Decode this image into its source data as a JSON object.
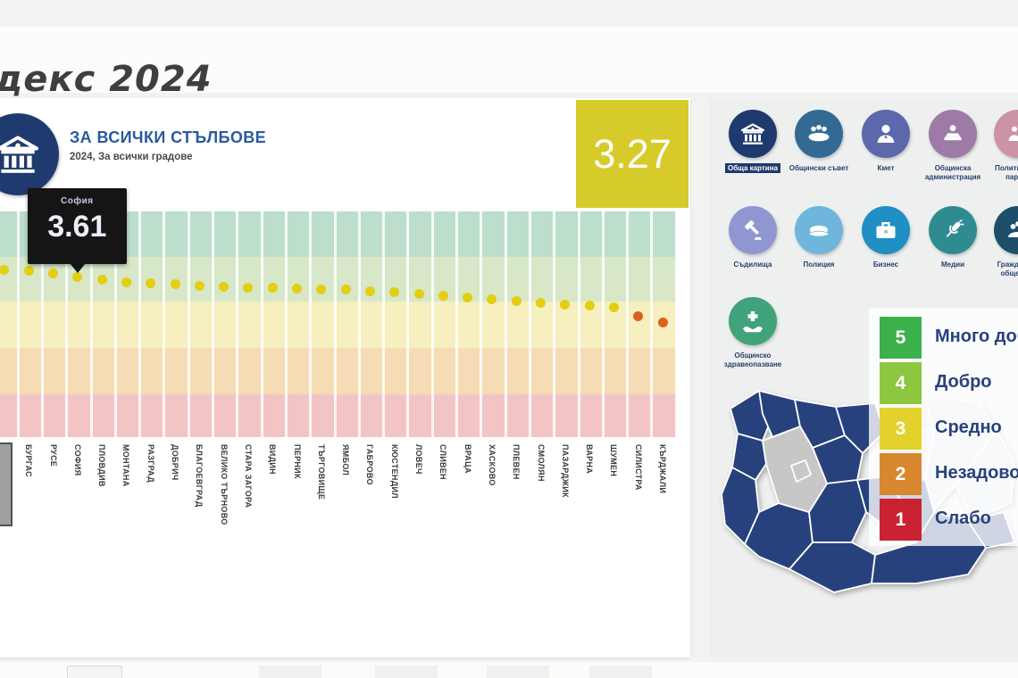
{
  "page": {
    "title": "декс 2024"
  },
  "chart_header": {
    "title": "ЗА ВСИЧКИ СТЪЛБОВЕ",
    "subtitle": "2024, За всички градове",
    "icon": "institution-bank-icon"
  },
  "average_badge": {
    "value": "3.27",
    "color": "#d7ca2b"
  },
  "tooltip": {
    "city": "София",
    "value": "3.61"
  },
  "chart_data": {
    "type": "scatter",
    "title": "ЗА ВСИЧКИ СТЪЛБОВЕ",
    "subtitle": "2024, За всички градове",
    "ylim": [
      1,
      5
    ],
    "average": 3.27,
    "dot_colors": {
      "normal": "#e3ce12",
      "low": "#de5f1d"
    },
    "bands": [
      {
        "score": 5,
        "color": "#bcdecb"
      },
      {
        "score": 4,
        "color": "#d7e7c8"
      },
      {
        "score": 3,
        "color": "#f6efbf"
      },
      {
        "score": 2,
        "color": "#f6dcb4"
      },
      {
        "score": 1,
        "color": "#f3c4c6"
      }
    ],
    "cropped_first": {
      "value": 3.72
    },
    "cities": [
      {
        "name": "БУРГАС",
        "value": 3.7
      },
      {
        "name": "РУСЕ",
        "value": 3.66
      },
      {
        "name": "СОФИЯ",
        "value": 3.61,
        "tooltip": true
      },
      {
        "name": "ПЛОВДИВ",
        "value": 3.56
      },
      {
        "name": "МОНТАНА",
        "value": 3.52
      },
      {
        "name": "РАЗГРАД",
        "value": 3.5
      },
      {
        "name": "ДОБРИЧ",
        "value": 3.48
      },
      {
        "name": "БЛАГОЕВГРАД",
        "value": 3.46
      },
      {
        "name": "ВЕЛИКО ТЪРНОВО",
        "value": 3.44
      },
      {
        "name": "СТАРА ЗАГОРА",
        "value": 3.43
      },
      {
        "name": "ВИДИН",
        "value": 3.42
      },
      {
        "name": "ПЕРНИК",
        "value": 3.41
      },
      {
        "name": "ТЪРГОВИЩЕ",
        "value": 3.4
      },
      {
        "name": "ЯМБОЛ",
        "value": 3.39
      },
      {
        "name": "ГАБРОВО",
        "value": 3.37
      },
      {
        "name": "КЮСТЕНДИЛ",
        "value": 3.35
      },
      {
        "name": "ЛОВЕЧ",
        "value": 3.33
      },
      {
        "name": "СЛИВЕН",
        "value": 3.3
      },
      {
        "name": "ВРАЦА",
        "value": 3.27
      },
      {
        "name": "ХАСКОВО",
        "value": 3.24
      },
      {
        "name": "ПЛЕВЕН",
        "value": 3.21
      },
      {
        "name": "СМОЛЯН",
        "value": 3.18
      },
      {
        "name": "ПАЗАРДЖИК",
        "value": 3.15
      },
      {
        "name": "ВАРНА",
        "value": 3.13
      },
      {
        "name": "ШУМЕН",
        "value": 3.1
      },
      {
        "name": "СИЛИСТРА",
        "value": 2.95
      },
      {
        "name": "КЪРДЖАЛИ",
        "value": 2.86
      }
    ]
  },
  "pillars": {
    "rows": [
      [
        {
          "label": "Обща картина",
          "icon": "bank-icon",
          "color": "#1f3a6e",
          "selected": true
        },
        {
          "label": "Общински съвет",
          "icon": "council-icon",
          "color": "#336a93",
          "selected": false
        },
        {
          "label": "Кмет",
          "icon": "mayor-icon",
          "color": "#5c68ab",
          "selected": false
        },
        {
          "label": "Общинска администрация",
          "icon": "administration-icon",
          "color": "#9d7ba6",
          "selected": false
        },
        {
          "label": "Политически партии",
          "icon": "parties-icon",
          "color": "#cb93a4",
          "selected": false
        }
      ],
      [
        {
          "label": "Съдилища",
          "icon": "court-gavel-icon",
          "color": "#8f96d0",
          "selected": false
        },
        {
          "label": "Полиция",
          "icon": "police-cap-icon",
          "color": "#6fb6dd",
          "selected": false
        },
        {
          "label": "Бизнес",
          "icon": "briefcase-icon",
          "color": "#1f8fc4",
          "selected": false
        },
        {
          "label": "Медии",
          "icon": "microphone-icon",
          "color": "#2e8c90",
          "selected": false
        },
        {
          "label": "Гражданско общество",
          "icon": "civil-society-icon",
          "color": "#1d4f6b",
          "selected": false
        }
      ],
      [
        {
          "label": "Общинско здравеопазване",
          "icon": "healthcare-hands-icon",
          "color": "#41a37b",
          "selected": false
        }
      ]
    ]
  },
  "legend": {
    "items": [
      {
        "score": "5",
        "label": "Много добро",
        "color": "#3cb14b"
      },
      {
        "score": "4",
        "label": "Добро",
        "color": "#8dc63f"
      },
      {
        "score": "3",
        "label": "Средно",
        "color": "#e2d22b"
      },
      {
        "score": "2",
        "label": "Незадоволително",
        "color": "#d8872e"
      },
      {
        "score": "1",
        "label": "Слабо",
        "color": "#cb2233"
      }
    ]
  },
  "map": {
    "province_color": "#27417d",
    "muted_color": "#c7c7c7",
    "faded_color": "#dde2ec",
    "border_color": "#ffffff"
  }
}
